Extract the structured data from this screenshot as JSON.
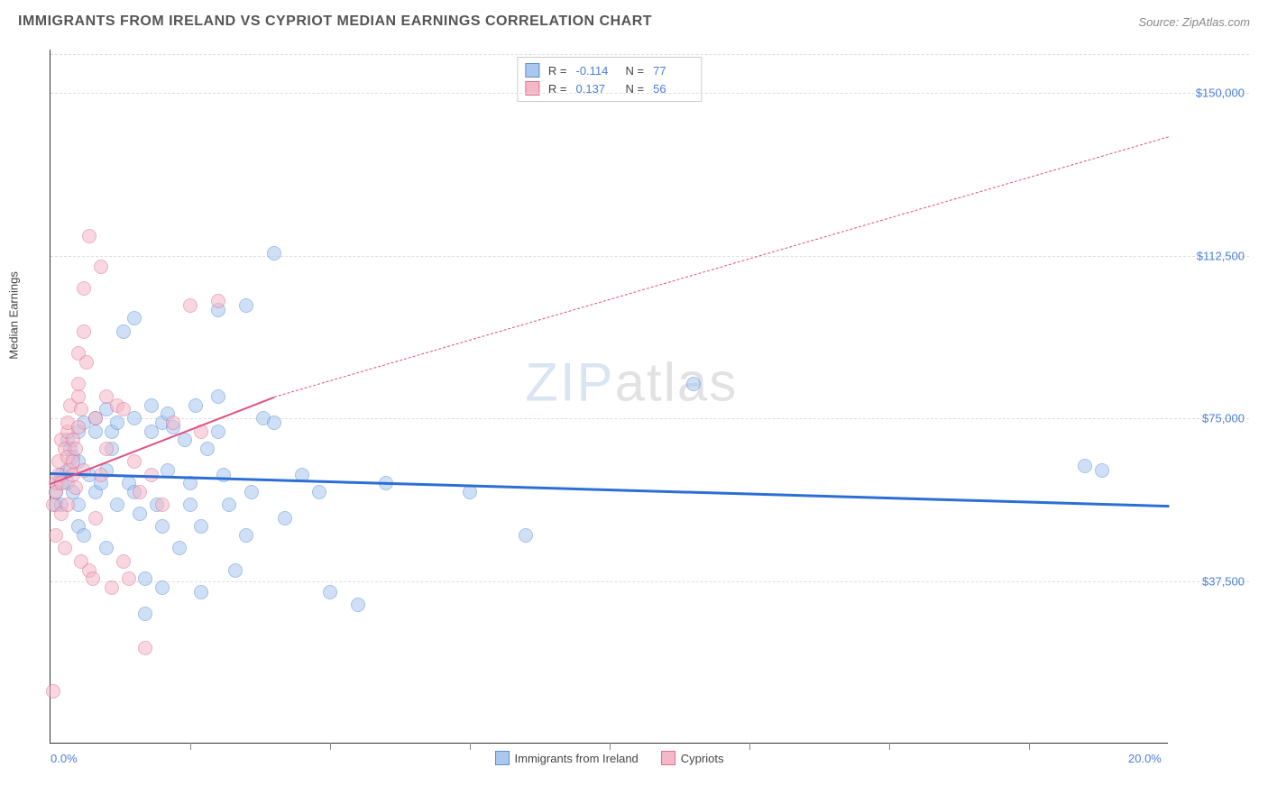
{
  "title": "IMMIGRANTS FROM IRELAND VS CYPRIOT MEDIAN EARNINGS CORRELATION CHART",
  "source": "Source: ZipAtlas.com",
  "watermark": {
    "bold": "ZIP",
    "thin": "atlas"
  },
  "chart": {
    "type": "scatter",
    "x_axis": {
      "min": 0.0,
      "max": 20.0,
      "labels": [
        {
          "pct": 0,
          "text": "0.0%"
        },
        {
          "pct": 100,
          "text": "20.0%"
        }
      ],
      "ticks_pct": [
        12.5,
        25,
        37.5,
        50,
        62.5,
        75,
        87.5
      ]
    },
    "y_axis": {
      "title": "Median Earnings",
      "min": 0,
      "max": 160000,
      "gridlines": [
        {
          "value": 37500,
          "label": "$37,500"
        },
        {
          "value": 75000,
          "label": "$75,000"
        },
        {
          "value": 112500,
          "label": "$112,500"
        },
        {
          "value": 150000,
          "label": "$150,000"
        }
      ]
    },
    "series": [
      {
        "name": "Immigrants from Ireland",
        "fill": "#a8c8f0",
        "stroke": "#5b8fd6",
        "marker_size": 16,
        "fill_opacity": 0.55,
        "R": "-0.114",
        "N": "77",
        "trend": {
          "color": "#2c6fd4",
          "width": 3,
          "dash": "none",
          "x1": 0,
          "y1": 62500,
          "x2": 20,
          "y2": 55000,
          "extend_dash": false
        },
        "points": [
          [
            0.1,
            55000
          ],
          [
            0.1,
            58000
          ],
          [
            0.15,
            60000
          ],
          [
            0.2,
            62000
          ],
          [
            0.2,
            55000
          ],
          [
            0.3,
            60000
          ],
          [
            0.3,
            63000
          ],
          [
            0.3,
            70000
          ],
          [
            0.35,
            68000
          ],
          [
            0.4,
            66000
          ],
          [
            0.4,
            58000
          ],
          [
            0.5,
            65000
          ],
          [
            0.5,
            72000
          ],
          [
            0.5,
            55000
          ],
          [
            0.5,
            50000
          ],
          [
            0.6,
            74000
          ],
          [
            0.6,
            48000
          ],
          [
            0.7,
            62000
          ],
          [
            0.8,
            75000
          ],
          [
            0.8,
            72000
          ],
          [
            0.8,
            58000
          ],
          [
            0.9,
            60000
          ],
          [
            1.0,
            77000
          ],
          [
            1.0,
            63000
          ],
          [
            1.0,
            45000
          ],
          [
            1.1,
            72000
          ],
          [
            1.1,
            68000
          ],
          [
            1.2,
            74000
          ],
          [
            1.2,
            55000
          ],
          [
            1.3,
            95000
          ],
          [
            1.4,
            60000
          ],
          [
            1.5,
            58000
          ],
          [
            1.5,
            75000
          ],
          [
            1.5,
            98000
          ],
          [
            1.6,
            53000
          ],
          [
            1.7,
            38000
          ],
          [
            1.7,
            30000
          ],
          [
            1.8,
            72000
          ],
          [
            1.8,
            78000
          ],
          [
            1.9,
            55000
          ],
          [
            2.0,
            74000
          ],
          [
            2.0,
            50000
          ],
          [
            2.0,
            36000
          ],
          [
            2.1,
            63000
          ],
          [
            2.1,
            76000
          ],
          [
            2.2,
            73000
          ],
          [
            2.3,
            45000
          ],
          [
            2.4,
            70000
          ],
          [
            2.5,
            55000
          ],
          [
            2.5,
            60000
          ],
          [
            2.6,
            78000
          ],
          [
            2.7,
            50000
          ],
          [
            2.7,
            35000
          ],
          [
            2.8,
            68000
          ],
          [
            3.0,
            80000
          ],
          [
            3.0,
            100000
          ],
          [
            3.0,
            72000
          ],
          [
            3.1,
            62000
          ],
          [
            3.2,
            55000
          ],
          [
            3.3,
            40000
          ],
          [
            3.5,
            48000
          ],
          [
            3.5,
            101000
          ],
          [
            3.6,
            58000
          ],
          [
            3.8,
            75000
          ],
          [
            4.0,
            74000
          ],
          [
            4.0,
            113000
          ],
          [
            4.2,
            52000
          ],
          [
            4.5,
            62000
          ],
          [
            4.8,
            58000
          ],
          [
            5.0,
            35000
          ],
          [
            5.5,
            32000
          ],
          [
            6.0,
            60000
          ],
          [
            7.5,
            58000
          ],
          [
            8.5,
            48000
          ],
          [
            11.5,
            83000
          ],
          [
            18.5,
            64000
          ],
          [
            18.8,
            63000
          ]
        ]
      },
      {
        "name": "Cypriots",
        "fill": "#f5b8c8",
        "stroke": "#e07090",
        "marker_size": 16,
        "fill_opacity": 0.55,
        "R": "0.137",
        "N": "56",
        "trend": {
          "color": "#e05080",
          "width": 2.5,
          "dash": "none",
          "x1": 0,
          "y1": 60000,
          "x2": 4,
          "y2": 80000,
          "extend_dash": true,
          "ext_x2": 20,
          "ext_y2": 140000
        },
        "points": [
          [
            0.05,
            55000
          ],
          [
            0.1,
            60000
          ],
          [
            0.1,
            58000
          ],
          [
            0.1,
            48000
          ],
          [
            0.15,
            62000
          ],
          [
            0.15,
            65000
          ],
          [
            0.2,
            70000
          ],
          [
            0.2,
            53000
          ],
          [
            0.2,
            60000
          ],
          [
            0.25,
            68000
          ],
          [
            0.25,
            45000
          ],
          [
            0.3,
            72000
          ],
          [
            0.3,
            66000
          ],
          [
            0.3,
            74000
          ],
          [
            0.3,
            55000
          ],
          [
            0.35,
            63000
          ],
          [
            0.35,
            78000
          ],
          [
            0.4,
            62000
          ],
          [
            0.4,
            70000
          ],
          [
            0.4,
            65000
          ],
          [
            0.45,
            59000
          ],
          [
            0.45,
            68000
          ],
          [
            0.5,
            73000
          ],
          [
            0.5,
            80000
          ],
          [
            0.5,
            83000
          ],
          [
            0.5,
            90000
          ],
          [
            0.55,
            77000
          ],
          [
            0.55,
            42000
          ],
          [
            0.6,
            95000
          ],
          [
            0.6,
            63000
          ],
          [
            0.6,
            105000
          ],
          [
            0.65,
            88000
          ],
          [
            0.7,
            117000
          ],
          [
            0.7,
            40000
          ],
          [
            0.75,
            38000
          ],
          [
            0.8,
            52000
          ],
          [
            0.8,
            75000
          ],
          [
            0.9,
            110000
          ],
          [
            0.9,
            62000
          ],
          [
            1.0,
            80000
          ],
          [
            1.0,
            68000
          ],
          [
            1.1,
            36000
          ],
          [
            1.2,
            78000
          ],
          [
            1.3,
            77000
          ],
          [
            1.3,
            42000
          ],
          [
            1.4,
            38000
          ],
          [
            1.5,
            65000
          ],
          [
            1.6,
            58000
          ],
          [
            1.7,
            22000
          ],
          [
            1.8,
            62000
          ],
          [
            2.0,
            55000
          ],
          [
            2.2,
            74000
          ],
          [
            2.5,
            101000
          ],
          [
            2.7,
            72000
          ],
          [
            3.0,
            102000
          ],
          [
            0.05,
            12000
          ]
        ]
      }
    ],
    "legend": {
      "series1_label": "Immigrants from Ireland",
      "series2_label": "Cypriots"
    }
  }
}
